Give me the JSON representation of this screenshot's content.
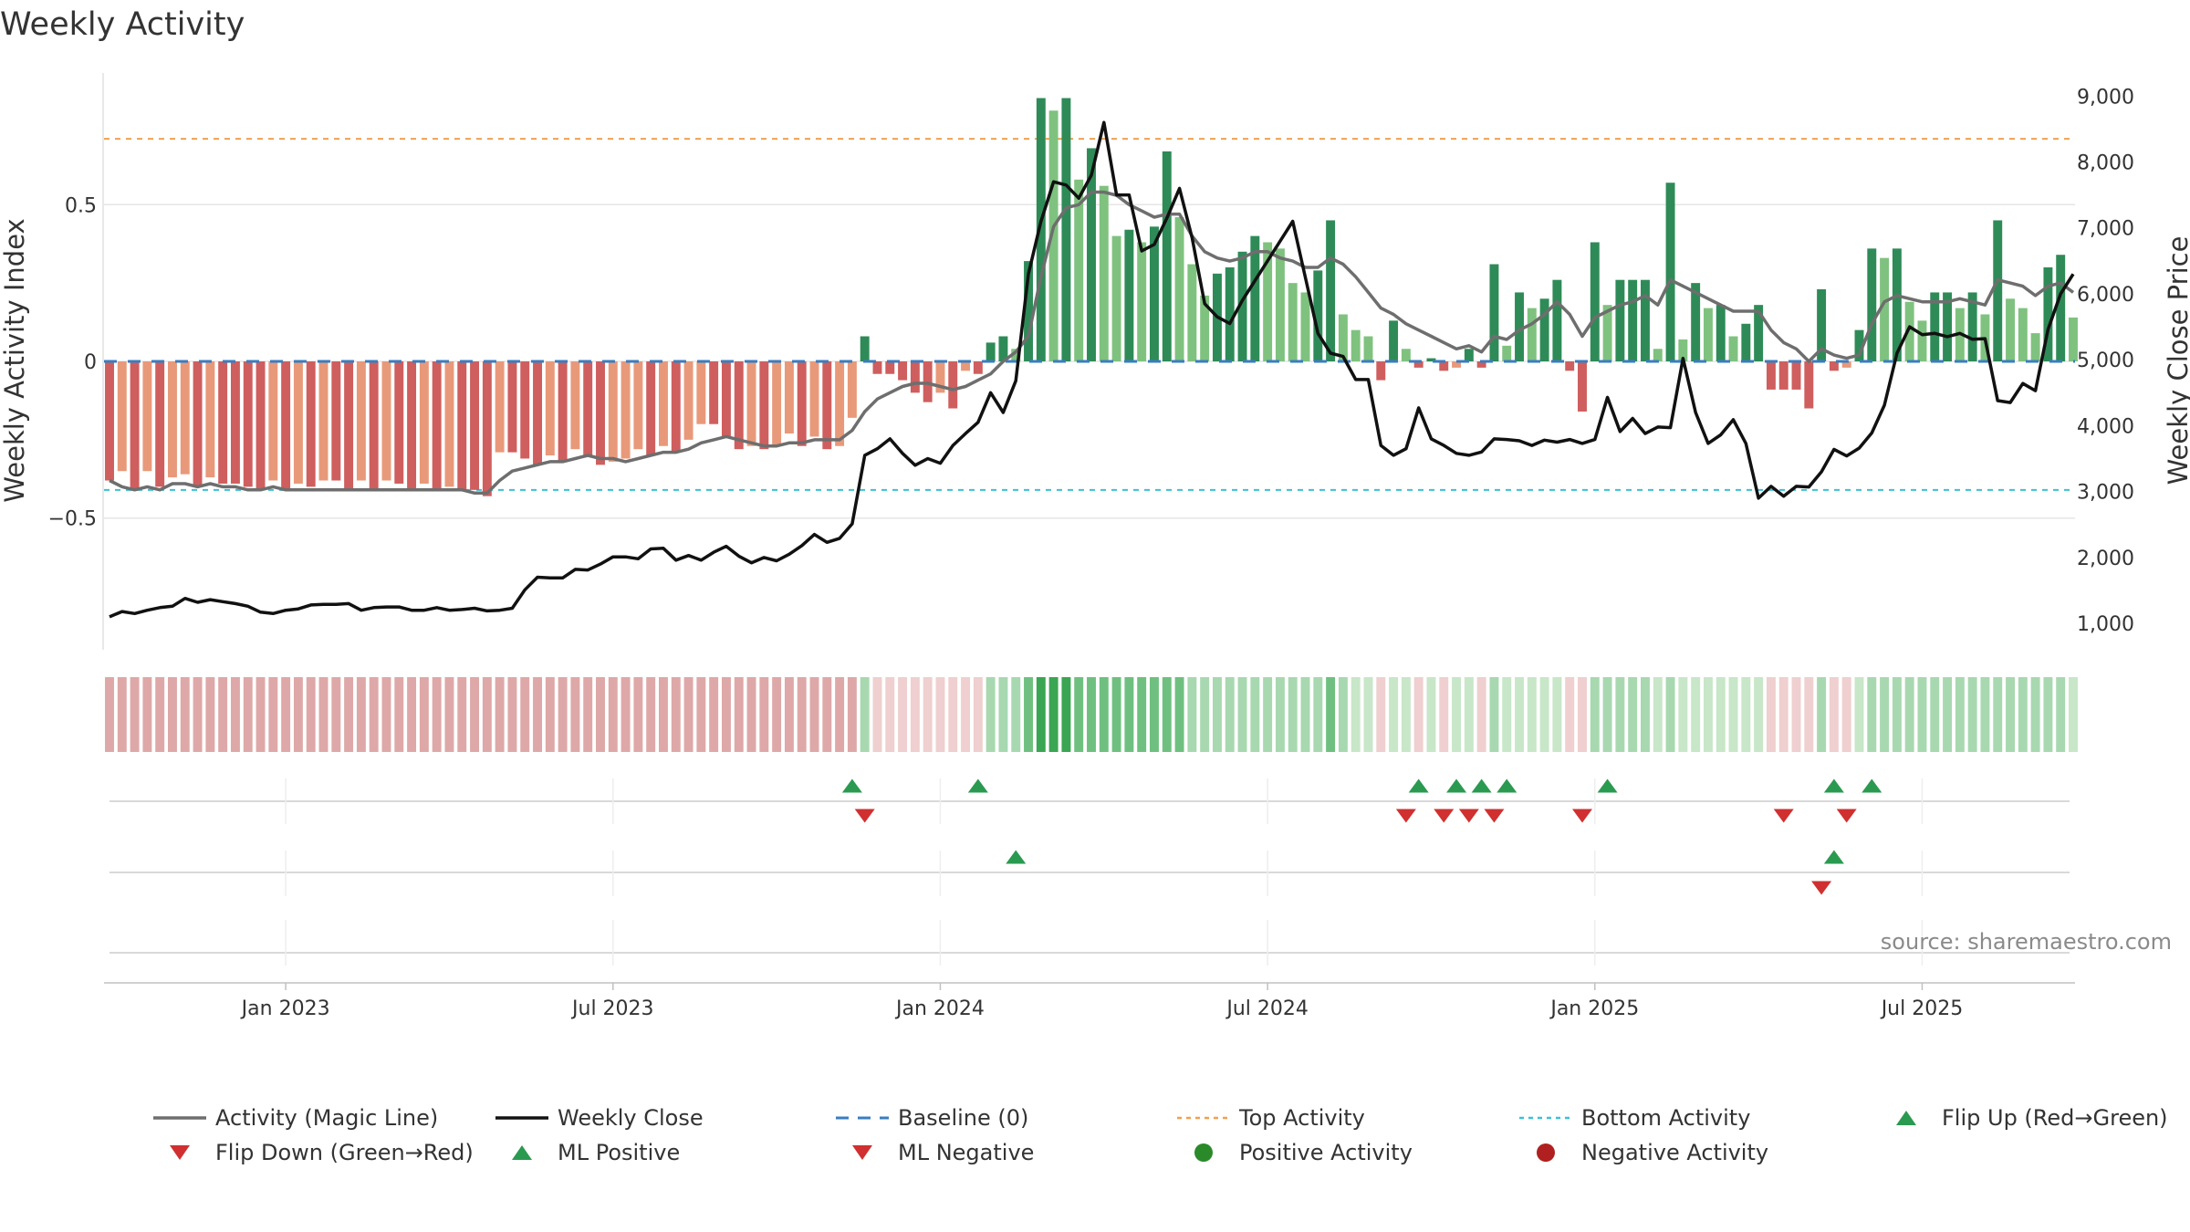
{
  "chart_data": {
    "type": "bar",
    "title": "Weekly Activity",
    "ylabel_left": "Weekly Activity Index",
    "ylabel_right": "Weekly Close Price",
    "y_left_ticks": [
      {
        "v": 0.5,
        "label": "0.5"
      },
      {
        "v": 0,
        "label": "0"
      },
      {
        "v": -0.5,
        "label": "−0.5"
      }
    ],
    "y_left_range": [
      -0.92,
      0.92
    ],
    "y_right_ticks": [
      {
        "v": 1000,
        "label": "1,000"
      },
      {
        "v": 2000,
        "label": "2,000"
      },
      {
        "v": 3000,
        "label": "3,000"
      },
      {
        "v": 4000,
        "label": "4,000"
      },
      {
        "v": 5000,
        "label": "5,000"
      },
      {
        "v": 6000,
        "label": "6,000"
      },
      {
        "v": 7000,
        "label": "7,000"
      },
      {
        "v": 8000,
        "label": "8,000"
      },
      {
        "v": 9000,
        "label": "9,000"
      }
    ],
    "y_right_range": [
      600,
      9350
    ],
    "x_ticks": [
      {
        "week": 14,
        "label": "Jan 2023"
      },
      {
        "week": 40,
        "label": "Jul 2023"
      },
      {
        "week": 66,
        "label": "Jan 2024"
      },
      {
        "week": 92,
        "label": "Jul 2024"
      },
      {
        "week": 118,
        "label": "Jan 2025"
      },
      {
        "week": 144,
        "label": "Jul 2025"
      }
    ],
    "top_activity": 0.71,
    "bottom_activity": -0.41,
    "baseline": 0,
    "activity": [
      -0.38,
      -0.35,
      -0.41,
      -0.35,
      -0.4,
      -0.37,
      -0.36,
      -0.4,
      -0.37,
      -0.39,
      -0.39,
      -0.4,
      -0.41,
      -0.38,
      -0.41,
      -0.39,
      -0.4,
      -0.38,
      -0.38,
      -0.41,
      -0.38,
      -0.41,
      -0.38,
      -0.39,
      -0.41,
      -0.39,
      -0.41,
      -0.4,
      -0.41,
      -0.41,
      -0.43,
      -0.29,
      -0.29,
      -0.31,
      -0.33,
      -0.3,
      -0.32,
      -0.28,
      -0.3,
      -0.33,
      -0.32,
      -0.31,
      -0.28,
      -0.3,
      -0.27,
      -0.29,
      -0.25,
      -0.2,
      -0.2,
      -0.24,
      -0.28,
      -0.27,
      -0.28,
      -0.27,
      -0.23,
      -0.27,
      -0.24,
      -0.28,
      -0.27,
      -0.18,
      0.08,
      -0.04,
      -0.04,
      -0.06,
      -0.1,
      -0.13,
      -0.1,
      -0.15,
      -0.03,
      -0.04,
      0.06,
      0.08,
      0.04,
      0.32,
      0.84,
      0.8,
      0.84,
      0.58,
      0.68,
      0.56,
      0.4,
      0.42,
      0.38,
      0.43,
      0.67,
      0.46,
      0.31,
      0.21,
      0.28,
      0.3,
      0.35,
      0.4,
      0.38,
      0.36,
      0.25,
      0.22,
      0.29,
      0.45,
      0.15,
      0.1,
      0.08,
      -0.06,
      0.13,
      0.04,
      -0.02,
      0.01,
      -0.03,
      -0.02,
      0.04,
      -0.02,
      0.31,
      0.05,
      0.22,
      0.17,
      0.2,
      0.26,
      -0.03,
      -0.16,
      0.38,
      0.18,
      0.26,
      0.26,
      0.26,
      0.04,
      0.57,
      0.07,
      0.25,
      0.17,
      0.18,
      0.08,
      0.12,
      0.18,
      -0.09,
      -0.09,
      -0.09,
      -0.15,
      0.23,
      -0.03,
      -0.02,
      0.1,
      0.36,
      0.33,
      0.36,
      0.19,
      0.13,
      0.22,
      0.22,
      0.17,
      0.22,
      0.15,
      0.45,
      0.2,
      0.17,
      0.09,
      0.3,
      0.34,
      0.14
    ],
    "magic_line": [
      -0.38,
      -0.4,
      -0.41,
      -0.4,
      -0.41,
      -0.39,
      -0.39,
      -0.4,
      -0.39,
      -0.4,
      -0.4,
      -0.41,
      -0.41,
      -0.4,
      -0.41,
      -0.41,
      -0.41,
      -0.41,
      -0.41,
      -0.41,
      -0.41,
      -0.41,
      -0.41,
      -0.41,
      -0.41,
      -0.41,
      -0.41,
      -0.41,
      -0.41,
      -0.42,
      -0.42,
      -0.38,
      -0.35,
      -0.34,
      -0.33,
      -0.32,
      -0.32,
      -0.31,
      -0.3,
      -0.31,
      -0.31,
      -0.32,
      -0.31,
      -0.3,
      -0.29,
      -0.29,
      -0.28,
      -0.26,
      -0.25,
      -0.24,
      -0.25,
      -0.26,
      -0.27,
      -0.27,
      -0.26,
      -0.26,
      -0.25,
      -0.25,
      -0.25,
      -0.22,
      -0.16,
      -0.12,
      -0.1,
      -0.08,
      -0.07,
      -0.07,
      -0.08,
      -0.09,
      -0.08,
      -0.06,
      -0.04,
      0,
      0.03,
      0.08,
      0.27,
      0.43,
      0.49,
      0.5,
      0.54,
      0.54,
      0.53,
      0.5,
      0.48,
      0.46,
      0.47,
      0.47,
      0.4,
      0.35,
      0.33,
      0.32,
      0.33,
      0.35,
      0.35,
      0.33,
      0.32,
      0.3,
      0.3,
      0.33,
      0.31,
      0.27,
      0.22,
      0.17,
      0.15,
      0.12,
      0.1,
      0.08,
      0.06,
      0.04,
      0.05,
      0.03,
      0.08,
      0.07,
      0.1,
      0.12,
      0.15,
      0.19,
      0.15,
      0.08,
      0.14,
      0.16,
      0.18,
      0.19,
      0.21,
      0.18,
      0.26,
      0.24,
      0.22,
      0.2,
      0.18,
      0.16,
      0.16,
      0.16,
      0.1,
      0.06,
      0.04,
      0,
      0.04,
      0.02,
      0.01,
      0.02,
      0.12,
      0.19,
      0.21,
      0.2,
      0.19,
      0.19,
      0.19,
      0.2,
      0.19,
      0.18,
      0.26,
      0.25,
      0.24,
      0.21,
      0.24,
      0.25,
      0.22
    ],
    "weekly_close": [
      1100,
      1180,
      1150,
      1200,
      1240,
      1260,
      1380,
      1320,
      1360,
      1330,
      1300,
      1260,
      1170,
      1150,
      1200,
      1220,
      1280,
      1290,
      1290,
      1300,
      1200,
      1240,
      1250,
      1250,
      1200,
      1200,
      1240,
      1200,
      1210,
      1230,
      1190,
      1200,
      1230,
      1510,
      1700,
      1690,
      1690,
      1820,
      1810,
      1900,
      2010,
      2010,
      1980,
      2130,
      2140,
      1960,
      2030,
      1960,
      2080,
      2170,
      2020,
      1920,
      2000,
      1950,
      2050,
      2180,
      2350,
      2230,
      2290,
      2510,
      3550,
      3650,
      3800,
      3580,
      3400,
      3500,
      3430,
      3700,
      3880,
      4050,
      4500,
      4200,
      4680,
      6300,
      7100,
      7700,
      7650,
      7450,
      7800,
      8600,
      7500,
      7500,
      6650,
      6750,
      7150,
      7600,
      6850,
      5850,
      5650,
      5550,
      5900,
      6200,
      6500,
      6800,
      7100,
      6250,
      5400,
      5100,
      5050,
      4700,
      4700,
      3700,
      3550,
      3650,
      4270,
      3800,
      3700,
      3580,
      3550,
      3600,
      3800,
      3790,
      3770,
      3700,
      3780,
      3750,
      3790,
      3730,
      3790,
      4430,
      3910,
      4110,
      3880,
      3980,
      3970,
      5020,
      4200,
      3730,
      3860,
      4090,
      3730,
      2900,
      3080,
      2930,
      3080,
      3070,
      3300,
      3640,
      3540,
      3660,
      3890,
      4310,
      5100,
      5500,
      5380,
      5400,
      5350,
      5400,
      5310,
      5320,
      4380,
      4350,
      4640,
      4530,
      5460,
      6000,
      6300
    ],
    "regime_strip": [
      "r1",
      "r1",
      "r1",
      "r1",
      "r1",
      "r1",
      "r1",
      "r1",
      "r1",
      "r1",
      "r1",
      "r1",
      "r1",
      "r1",
      "r1",
      "r1",
      "r1",
      "r1",
      "r1",
      "r1",
      "r1",
      "r1",
      "r1",
      "r1",
      "r1",
      "r1",
      "r1",
      "r1",
      "r1",
      "r1",
      "r1",
      "r1",
      "r1",
      "r1",
      "r1",
      "r1",
      "r1",
      "r1",
      "r1",
      "r1",
      "r1",
      "r1",
      "r1",
      "r1",
      "r1",
      "r1",
      "r1",
      "r1",
      "r1",
      "r1",
      "r1",
      "r1",
      "r1",
      "r1",
      "r1",
      "r1",
      "r1",
      "r1",
      "r1",
      "r1",
      "g1",
      "r2",
      "r2",
      "r2",
      "r2",
      "r2",
      "r2",
      "r2",
      "r2",
      "r2",
      "g1",
      "g1",
      "g1",
      "g2",
      "g3",
      "g3",
      "g3",
      "g2",
      "g2",
      "g2",
      "g2",
      "g2",
      "g2",
      "g2",
      "g2",
      "g2",
      "g1",
      "g1",
      "g1",
      "g1",
      "g1",
      "g1",
      "g1",
      "g1",
      "g1",
      "g1",
      "g1",
      "g2",
      "g1",
      "g0",
      "g0",
      "r2",
      "g0",
      "g0",
      "r2",
      "g0",
      "r2",
      "g0",
      "g0",
      "r2",
      "g1",
      "g0",
      "g0",
      "g0",
      "g0",
      "g0",
      "r2",
      "r2",
      "g1",
      "g1",
      "g1",
      "g1",
      "g1",
      "g0",
      "g1",
      "g0",
      "g0",
      "g0",
      "g0",
      "g0",
      "g0",
      "g0",
      "r2",
      "r2",
      "r2",
      "r2",
      "g1",
      "r2",
      "r2",
      "g0",
      "g1",
      "g1",
      "g1",
      "g1",
      "g1",
      "g1",
      "g1",
      "g1",
      "g1",
      "g1",
      "g1",
      "g1",
      "g1",
      "g1",
      "g1",
      "g1",
      "g0"
    ],
    "flip_up": [
      59,
      69,
      104,
      107,
      109,
      111,
      119,
      137,
      140
    ],
    "flip_down": [
      60,
      103,
      106,
      108,
      110,
      117,
      133,
      138
    ],
    "ml_positive": [
      72,
      137
    ],
    "ml_negative": [
      136
    ],
    "source": "source: sharemaestro.com",
    "legend": [
      {
        "label": "Activity (Magic Line)",
        "kind": "line",
        "color": "#6e6e6e"
      },
      {
        "label": "Weekly Close",
        "kind": "line",
        "color": "#111111"
      },
      {
        "label": "Baseline (0)",
        "kind": "dash",
        "color": "#3a7dc0"
      },
      {
        "label": "Top Activity",
        "kind": "dot",
        "color": "#f0a050"
      },
      {
        "label": "Bottom Activity",
        "kind": "dot",
        "color": "#3cc0d8"
      },
      {
        "label": "Flip Up (Red→Green)",
        "kind": "up",
        "color": "#2a9a50"
      },
      {
        "label": "Flip Down (Green→Red)",
        "kind": "down",
        "color": "#d03030"
      },
      {
        "label": "ML Positive",
        "kind": "up",
        "color": "#2a9a50"
      },
      {
        "label": "ML Negative",
        "kind": "down",
        "color": "#d03030"
      },
      {
        "label": "Positive Activity",
        "kind": "circle",
        "color": "#2a8a2a"
      },
      {
        "label": "Negative Activity",
        "kind": "circle",
        "color": "#b02020"
      }
    ],
    "colors": {
      "pos_dark": "#2e8b57",
      "pos_light": "#7fc27f",
      "neg_dark": "#cf5e5e",
      "neg_light": "#e8997a",
      "magic": "#6e6e6e",
      "close": "#111111",
      "baseline": "#3a7dc0",
      "top": "#f0a050",
      "bottom": "#3cc0d8",
      "grid": "#e6e6e6",
      "subgrid": "#d9d9d9",
      "strip": {
        "r1": "#dea8a8",
        "r2": "#efcfcf",
        "g0": "#c8e6c8",
        "g1": "#a8d8b0",
        "g2": "#6fc080",
        "g3": "#3aa552"
      },
      "up": "#2a9a50",
      "down": "#d03030"
    }
  }
}
